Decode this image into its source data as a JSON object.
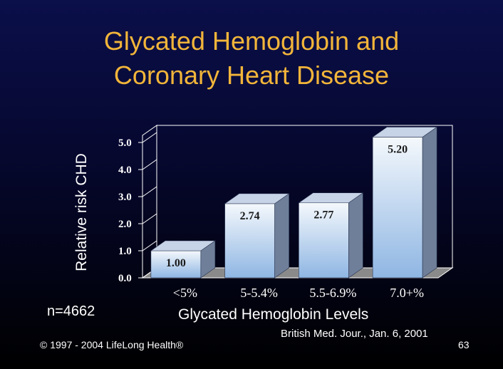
{
  "slide": {
    "title_line1": "Glycated Hemoglobin and",
    "title_line2": "Coronary Heart Disease",
    "sample_size": "n=4662",
    "copyright": "© 1997 - 2004 LifeLong Health®",
    "citation": "British Med. Jour., Jan. 6, 2001",
    "page_number": "63"
  },
  "colors": {
    "title": "#f2b53a",
    "bar_front_top": "#f4f8fc",
    "bar_front_bottom": "#8fb6e3",
    "bar_side": "#6f7f9a",
    "bar_top": "#c7d3e6",
    "wall": "#ffffff",
    "floor": "#8a8a8a"
  },
  "chart_data": {
    "type": "bar",
    "title": "Glycated Hemoglobin and Coronary Heart Disease",
    "xlabel": "Glycated Hemoglobin Levels",
    "ylabel": "Relative risk CHD",
    "categories": [
      "<5%",
      "5-5.4%",
      "5.5-6.9%",
      "7.0+%"
    ],
    "values": [
      1.0,
      2.74,
      2.77,
      5.2
    ],
    "value_labels": [
      "1.00",
      "2.74",
      "2.77",
      "5.20"
    ],
    "ylim": [
      0,
      5
    ],
    "y_ticks": [
      "0.0",
      "1.0",
      "2.0",
      "3.0",
      "4.0",
      "5.0"
    ],
    "grid": false,
    "style": "3d-bars"
  }
}
